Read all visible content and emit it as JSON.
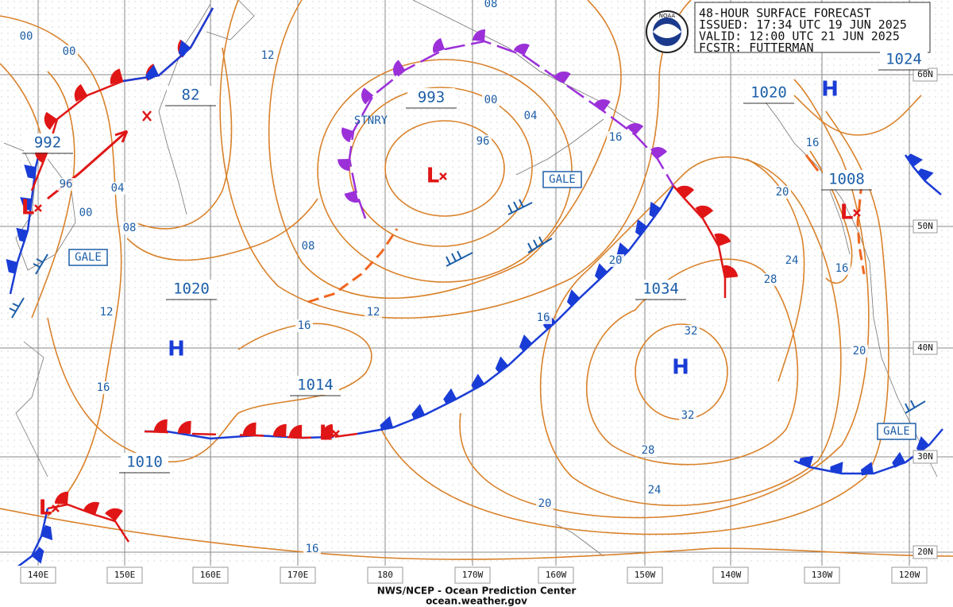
{
  "header": {
    "lines": [
      "48-HOUR SURFACE FORECAST",
      "ISSUED: 17:34 UTC 19 JUN 2025",
      "VALID:  12:00 UTC 21 JUN 2025",
      "FCSTR: FUTTERMAN"
    ]
  },
  "footer": [
    "NWS/NCEP - Ocean Prediction Center",
    "ocean.weather.gov"
  ],
  "logo": "NOAA",
  "lon_labels": [
    "140E",
    "150E",
    "160E",
    "170E",
    "180",
    "170W",
    "160W",
    "150W",
    "140W",
    "130W",
    "120W"
  ],
  "lat_labels": [
    "60N",
    "50N",
    "40N",
    "30N",
    "20N"
  ],
  "pressure_labels": [
    "992",
    "82",
    "993",
    "1020",
    "1024",
    "1008",
    "1020",
    "1034",
    "1014",
    "1010"
  ],
  "highs": [
    "H",
    "H",
    "H"
  ],
  "lows": [
    "L",
    "L",
    "L",
    "L",
    "L"
  ],
  "isobar_labels": [
    "00",
    "00",
    "12",
    "08",
    "00",
    "96",
    "04",
    "16",
    "16",
    "20",
    "24",
    "28",
    "16",
    "20",
    "96",
    "04",
    "00",
    "08",
    "08",
    "12",
    "12",
    "16",
    "16",
    "20",
    "16",
    "32",
    "32",
    "28",
    "24",
    "20",
    "16"
  ],
  "gale_labels": [
    "GALE",
    "GALE",
    "GALE"
  ],
  "front_labels": [
    "STNRY"
  ]
}
